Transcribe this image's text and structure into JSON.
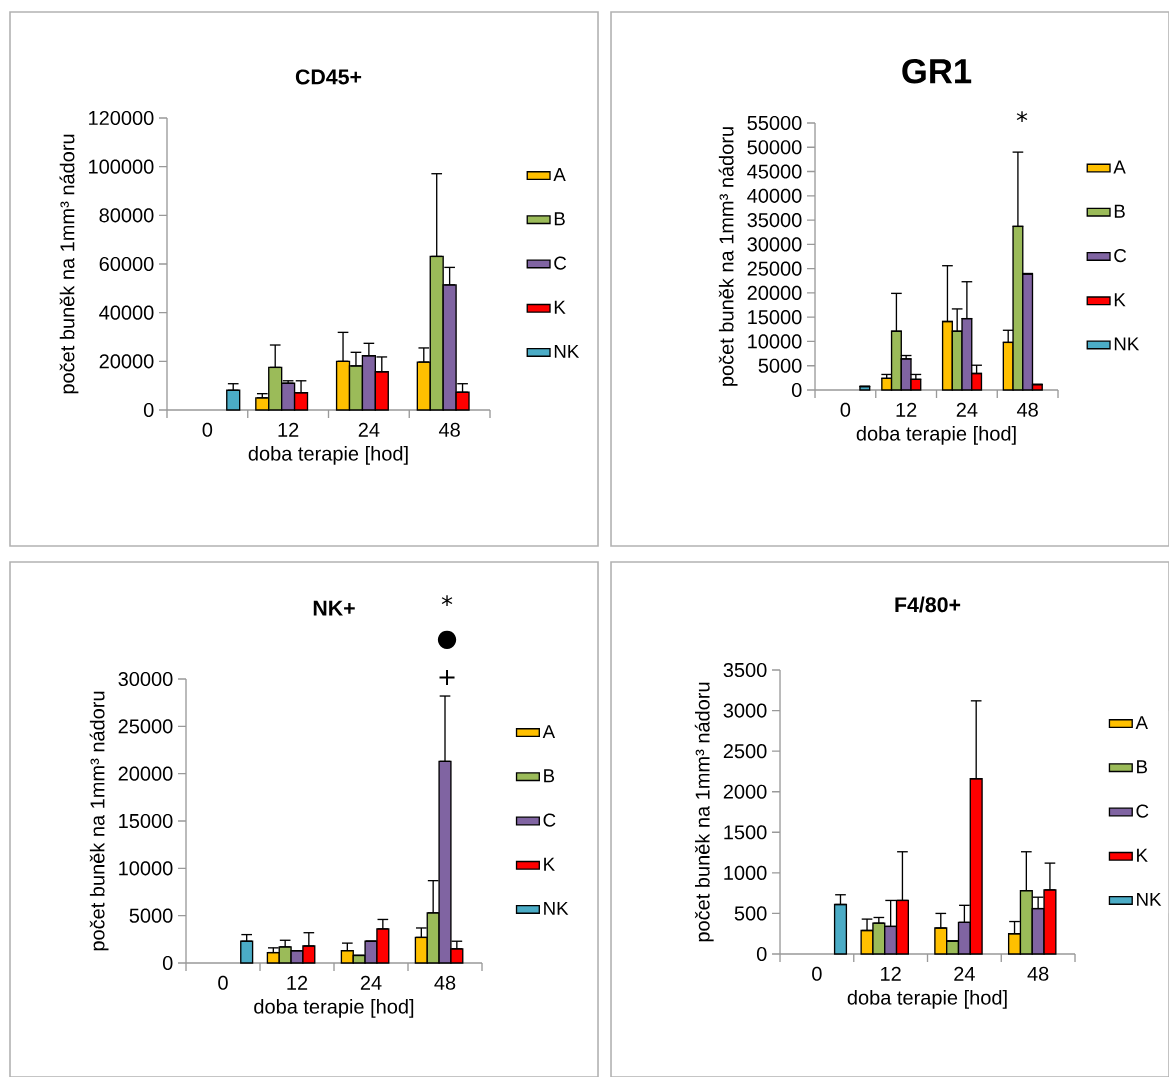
{
  "chart_data": [
    {
      "type": "bar",
      "title": "CD45+",
      "xlabel": "doba terapie [hod]",
      "ylabel": "počet buněk  na 1mm³ nádoru",
      "categories": [
        "0",
        "12",
        "24",
        "48"
      ],
      "ylim": [
        0,
        120000
      ],
      "yticks": [
        0,
        20000,
        40000,
        60000,
        80000,
        100000,
        120000
      ],
      "legend": "right",
      "series": [
        {
          "name": "A",
          "color": "#ffc000",
          "values": [
            null,
            5000,
            20000,
            19700
          ],
          "errors": [
            null,
            [
              5000,
              6700
            ],
            [
              20000,
              31900
            ],
            [
              19700,
              25500
            ]
          ]
        },
        {
          "name": "B",
          "color": "#9bbb59",
          "values": [
            null,
            17500,
            18100,
            63100
          ],
          "errors": [
            null,
            [
              17500,
              26700
            ],
            [
              18100,
              23700
            ],
            [
              63100,
              97100
            ]
          ]
        },
        {
          "name": "C",
          "color": "#8064a2",
          "values": [
            null,
            11000,
            22300,
            51400
          ],
          "errors": [
            null,
            [
              11000,
              12000
            ],
            [
              22300,
              27400
            ],
            [
              51400,
              58600
            ]
          ]
        },
        {
          "name": "K",
          "color": "#ff0000",
          "values": [
            null,
            7100,
            15700,
            7300
          ],
          "errors": [
            null,
            [
              7100,
              12000
            ],
            [
              15700,
              21800
            ],
            [
              7300,
              10800
            ]
          ]
        },
        {
          "name": "NK",
          "color": "#4bacc6",
          "values": [
            8100,
            null,
            null,
            null
          ],
          "errors": [
            [
              8100,
              10800
            ],
            null,
            null,
            null
          ]
        }
      ]
    },
    {
      "type": "bar",
      "title": "GR1",
      "xlabel": "doba terapie [hod]",
      "ylabel": "počet buněk  na 1mm³ nádoru",
      "categories": [
        "0",
        "12",
        "24",
        "48"
      ],
      "ylim": [
        0,
        55000
      ],
      "yticks": [
        0,
        5000,
        10000,
        15000,
        20000,
        25000,
        30000,
        35000,
        40000,
        45000,
        50000,
        55000
      ],
      "legend": "right",
      "annotations": [
        "*"
      ],
      "series": [
        {
          "name": "A",
          "color": "#ffc000",
          "values": [
            null,
            2400,
            14100,
            9800
          ],
          "errors": [
            null,
            [
              2400,
              3200
            ],
            [
              14100,
              25600
            ],
            [
              9800,
              12300
            ]
          ]
        },
        {
          "name": "B",
          "color": "#9bbb59",
          "values": [
            null,
            12100,
            12100,
            33700
          ],
          "errors": [
            null,
            [
              12100,
              19900
            ],
            [
              12100,
              16700
            ],
            [
              33700,
              49000
            ]
          ]
        },
        {
          "name": "C",
          "color": "#8064a2",
          "values": [
            null,
            6400,
            14700,
            23900
          ],
          "errors": [
            null,
            [
              6400,
              7100
            ],
            [
              14700,
              22300
            ],
            [
              23900,
              24000
            ]
          ]
        },
        {
          "name": "K",
          "color": "#ff0000",
          "values": [
            null,
            2200,
            3400,
            1100
          ],
          "errors": [
            null,
            [
              2200,
              3200
            ],
            [
              3400,
              5100
            ],
            [
              1100,
              1200
            ]
          ]
        },
        {
          "name": "NK",
          "color": "#4bacc6",
          "values": [
            700,
            null,
            null,
            null
          ],
          "errors": [
            [
              700,
              800
            ],
            null,
            null,
            null
          ]
        }
      ]
    },
    {
      "type": "bar",
      "title": "NK+",
      "xlabel": "doba terapie [hod]",
      "ylabel": "počet buněk  na 1mm³ nádoru",
      "categories": [
        "0",
        "12",
        "24",
        "48"
      ],
      "ylim": [
        0,
        30000
      ],
      "yticks": [
        0,
        5000,
        10000,
        15000,
        20000,
        25000,
        30000
      ],
      "legend": "right",
      "annotations": [
        "*",
        "●",
        "+"
      ],
      "series": [
        {
          "name": "A",
          "color": "#ffc000",
          "values": [
            null,
            1100,
            1300,
            2700
          ],
          "errors": [
            null,
            [
              1100,
              1600
            ],
            [
              1300,
              2100
            ],
            [
              2700,
              3700
            ]
          ]
        },
        {
          "name": "B",
          "color": "#9bbb59",
          "values": [
            null,
            1700,
            800,
            5300
          ],
          "errors": [
            null,
            [
              1700,
              2400
            ],
            null,
            [
              5300,
              8700
            ]
          ]
        },
        {
          "name": "C",
          "color": "#8064a2",
          "values": [
            null,
            1300,
            2300,
            21300
          ],
          "errors": [
            null,
            null,
            null,
            [
              21300,
              28200
            ]
          ]
        },
        {
          "name": "K",
          "color": "#ff0000",
          "values": [
            null,
            1800,
            3600,
            1500
          ],
          "errors": [
            null,
            [
              1800,
              3200
            ],
            [
              3600,
              4600
            ],
            [
              1500,
              2300
            ]
          ]
        },
        {
          "name": "NK",
          "color": "#4bacc6",
          "values": [
            2300,
            null,
            null,
            null
          ],
          "errors": [
            [
              2300,
              3000
            ],
            null,
            null,
            null
          ]
        }
      ]
    },
    {
      "type": "bar",
      "title": "F4/80+",
      "xlabel": "doba terapie [hod]",
      "ylabel": "počet buněk  na 1mm³ nádoru",
      "categories": [
        "0",
        "12",
        "24",
        "48"
      ],
      "ylim": [
        0,
        3500
      ],
      "yticks": [
        0,
        500,
        1000,
        1500,
        2000,
        2500,
        3000,
        3500
      ],
      "legend": "right",
      "series": [
        {
          "name": "A",
          "color": "#ffc000",
          "values": [
            null,
            290,
            320,
            250
          ],
          "errors": [
            null,
            [
              290,
              430
            ],
            [
              320,
              500
            ],
            [
              250,
              400
            ]
          ]
        },
        {
          "name": "B",
          "color": "#9bbb59",
          "values": [
            null,
            380,
            160,
            780
          ],
          "errors": [
            null,
            [
              380,
              450
            ],
            null,
            [
              780,
              1260
            ]
          ]
        },
        {
          "name": "C",
          "color": "#8064a2",
          "values": [
            null,
            340,
            390,
            560
          ],
          "errors": [
            null,
            [
              340,
              660
            ],
            [
              390,
              600
            ],
            [
              560,
              700
            ]
          ]
        },
        {
          "name": "K",
          "color": "#ff0000",
          "values": [
            null,
            660,
            2160,
            790
          ],
          "errors": [
            null,
            [
              660,
              1260
            ],
            [
              2160,
              3120
            ],
            [
              790,
              1120
            ]
          ]
        },
        {
          "name": "NK",
          "color": "#4bacc6",
          "values": [
            610,
            null,
            null,
            null
          ],
          "errors": [
            [
              610,
              730
            ],
            null,
            null,
            null
          ]
        }
      ]
    }
  ]
}
